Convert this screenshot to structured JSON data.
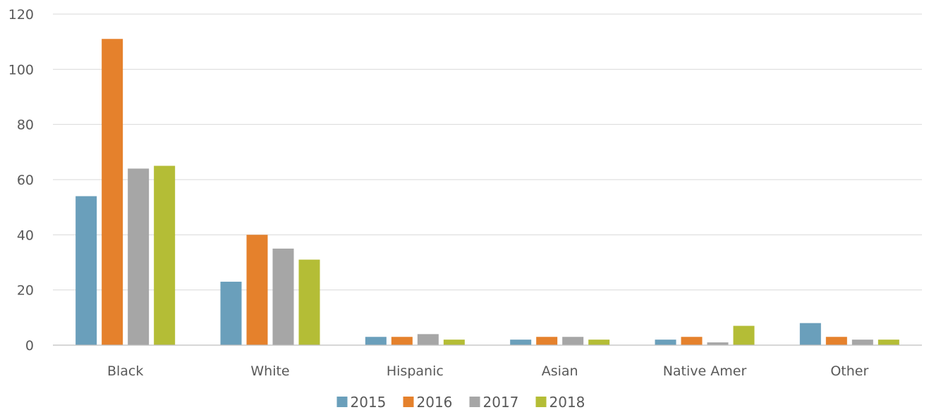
{
  "chart_data": {
    "type": "bar",
    "title": "",
    "xlabel": "",
    "ylabel": "",
    "categories": [
      "Black",
      "White",
      "Hispanic",
      "Asian",
      "Native Amer",
      "Other"
    ],
    "series": [
      {
        "name": "2015",
        "color": "#6a9fbb",
        "values": [
          54,
          23,
          3,
          2,
          2,
          8
        ]
      },
      {
        "name": "2016",
        "color": "#e5812c",
        "values": [
          111,
          40,
          3,
          3,
          3,
          3
        ]
      },
      {
        "name": "2017",
        "color": "#a6a6a6",
        "values": [
          64,
          35,
          4,
          3,
          1,
          2
        ]
      },
      {
        "name": "2018",
        "color": "#b4bd36",
        "values": [
          65,
          31,
          2,
          2,
          7,
          2
        ]
      }
    ],
    "ylim": [
      0,
      120
    ],
    "yticks": [
      0,
      20,
      40,
      60,
      80,
      100,
      120
    ],
    "grid": true,
    "legend_position": "bottom"
  }
}
